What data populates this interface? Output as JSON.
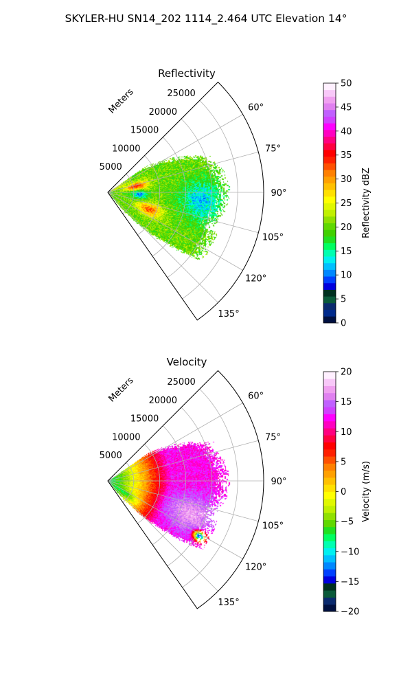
{
  "suptitle": "SKYLER-HU  SN14_202  1114_2.464 UTC Elevation 14°",
  "chart_data": [
    {
      "type": "heatmap",
      "projection": "polar-sector",
      "title": "Reflectivity",
      "radial_label": "Meters",
      "radial_ticks": [
        5000,
        10000,
        15000,
        20000,
        25000
      ],
      "radial_tick_labels": [
        "5000",
        "10000",
        "15000",
        "20000",
        "25000"
      ],
      "rlim": [
        0,
        30000
      ],
      "azimuth_range_deg": [
        45,
        145
      ],
      "azimuth_ticks_deg": [
        60,
        75,
        90,
        105,
        120,
        135
      ],
      "azimuth_tick_labels": [
        "60°",
        "75°",
        "90°",
        "105°",
        "120°",
        "135°"
      ],
      "grid": true,
      "colorbar": {
        "label": "Reflectivity dBZ",
        "range": [
          0,
          50
        ],
        "ticks": [
          0,
          5,
          10,
          15,
          20,
          25,
          30,
          35,
          40,
          45,
          50
        ],
        "tick_labels": [
          "0",
          "5",
          "10",
          "15",
          "20",
          "25",
          "30",
          "35",
          "40",
          "45",
          "50"
        ],
        "colors": [
          "#001040",
          "#002a8c",
          "#0a2a6e",
          "#0a5a3a",
          "#003020",
          "#0000dd",
          "#0040ff",
          "#0088ff",
          "#00c0ff",
          "#00f0f0",
          "#00ffb0",
          "#00ff60",
          "#20e020",
          "#40d000",
          "#60d800",
          "#90e000",
          "#c0f000",
          "#e0f800",
          "#ffff00",
          "#ffe000",
          "#ffc000",
          "#ffa000",
          "#ff8000",
          "#ff5000",
          "#ff2000",
          "#ff0000",
          "#ff0040",
          "#ff0080",
          "#ff00c0",
          "#ff00ff",
          "#d040ff",
          "#c060ff",
          "#e080f0",
          "#f0a0f0",
          "#f8c8f8",
          "#fff0ff"
        ]
      },
      "field_summary": [
        {
          "azimuth_deg": [
            50,
            142
          ],
          "range_m": [
            0,
            4000
          ],
          "dBZ": 22
        },
        {
          "azimuth_deg": [
            70,
            85
          ],
          "range_m": [
            4000,
            8000
          ],
          "dBZ": 36
        },
        {
          "azimuth_deg": [
            100,
            120
          ],
          "range_m": [
            6000,
            11000
          ],
          "dBZ": 34
        },
        {
          "azimuth_deg": [
            70,
            130
          ],
          "range_m": [
            5000,
            15000
          ],
          "dBZ": 22
        },
        {
          "azimuth_deg": [
            75,
            110
          ],
          "range_m": [
            14000,
            22000
          ],
          "dBZ": 14
        },
        {
          "azimuth_deg": [
            108,
            122
          ],
          "range_m": [
            15000,
            23000
          ],
          "dBZ": 18
        }
      ]
    },
    {
      "type": "heatmap",
      "projection": "polar-sector",
      "title": "Velocity",
      "radial_label": "Meters",
      "radial_ticks": [
        5000,
        10000,
        15000,
        20000,
        25000
      ],
      "radial_tick_labels": [
        "5000",
        "10000",
        "15000",
        "20000",
        "25000"
      ],
      "rlim": [
        0,
        30000
      ],
      "azimuth_range_deg": [
        45,
        145
      ],
      "azimuth_ticks_deg": [
        60,
        75,
        90,
        105,
        120,
        135
      ],
      "azimuth_tick_labels": [
        "60°",
        "75°",
        "90°",
        "105°",
        "120°",
        "135°"
      ],
      "grid": true,
      "colorbar": {
        "label": "Velocity (m/s)",
        "range": [
          -20,
          20
        ],
        "ticks": [
          -20,
          -15,
          -10,
          -5,
          0,
          5,
          10,
          15,
          20
        ],
        "tick_labels": [
          "−20",
          "−15",
          "−10",
          "−5",
          "0",
          "5",
          "10",
          "15",
          "20"
        ],
        "colors": [
          "#001040",
          "#0a2a6e",
          "#0a5a3a",
          "#003020",
          "#0000dd",
          "#0040ff",
          "#0088ff",
          "#00c0ff",
          "#00f0f0",
          "#00ffb0",
          "#00ff60",
          "#20e020",
          "#60d800",
          "#90e000",
          "#c0f000",
          "#e0f800",
          "#ffff00",
          "#ffe000",
          "#ffc000",
          "#ffa000",
          "#ff8000",
          "#ff5000",
          "#ff2000",
          "#ff0000",
          "#ff0040",
          "#ff0080",
          "#ff00c0",
          "#ff00ff",
          "#d040ff",
          "#c060ff",
          "#e080f0",
          "#f0a0f0",
          "#f8c8f8",
          "#fff0ff"
        ]
      },
      "field_summary": [
        {
          "azimuth_deg": [
            55,
            140
          ],
          "range_m": [
            0,
            3000
          ],
          "m_s": -8
        },
        {
          "azimuth_deg": [
            100,
            138
          ],
          "range_m": [
            2000,
            6000
          ],
          "m_s": -3
        },
        {
          "azimuth_deg": [
            80,
            115
          ],
          "range_m": [
            3000,
            8000
          ],
          "m_s": 1
        },
        {
          "azimuth_deg": [
            55,
            125
          ],
          "range_m": [
            6000,
            14000
          ],
          "m_s": 9
        },
        {
          "azimuth_deg": [
            90,
            125
          ],
          "range_m": [
            12000,
            22000
          ],
          "m_s": 15
        },
        {
          "azimuth_deg": [
            118,
            124
          ],
          "range_m": [
            19000,
            22000
          ],
          "m_s": -14
        }
      ]
    }
  ]
}
